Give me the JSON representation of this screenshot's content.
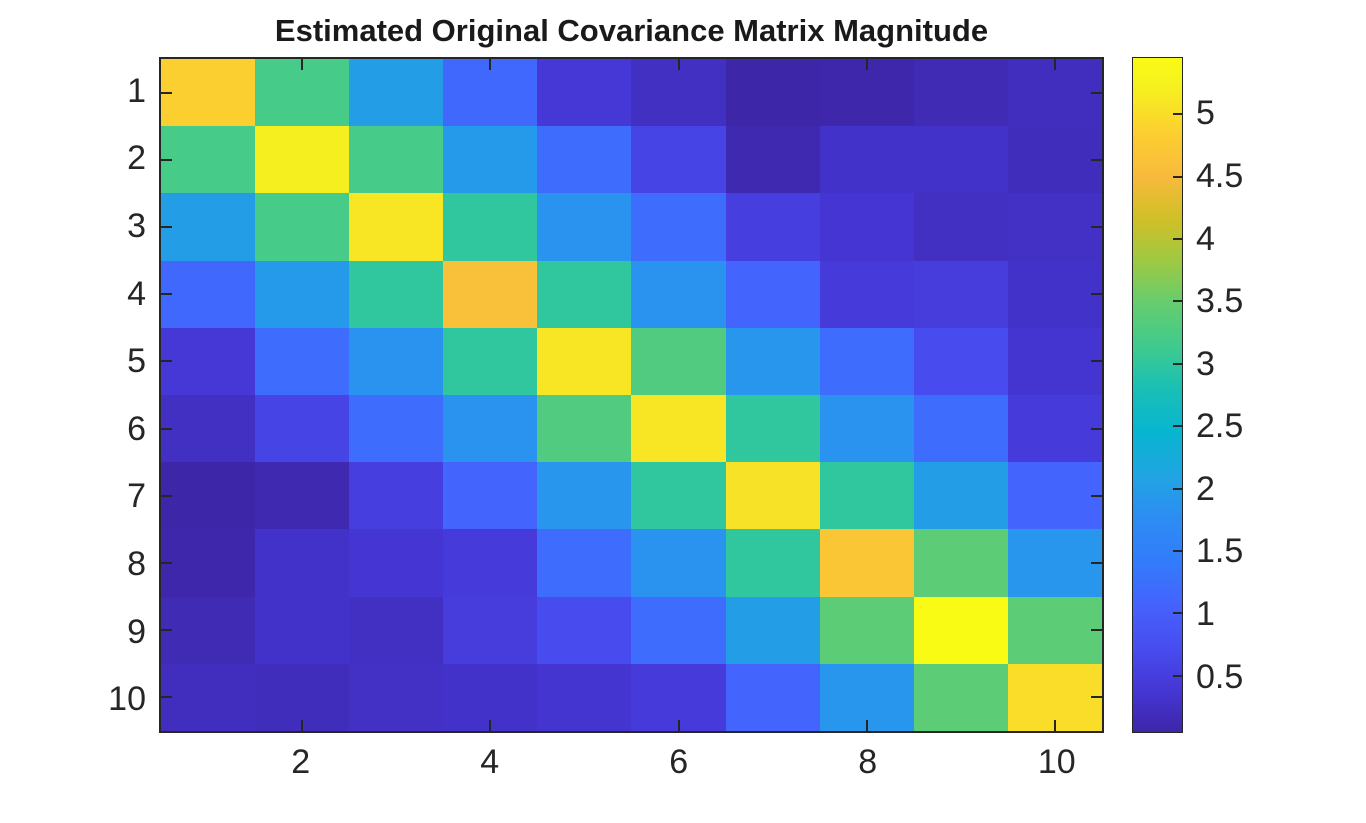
{
  "figure": {
    "background": "#ffffff"
  },
  "style": {
    "axis_color": "#262626",
    "title_color": "#1a1a1a"
  },
  "chart_data": {
    "type": "heatmap",
    "title": "Estimated Original Covariance Matrix Magnitude",
    "xlabel": "",
    "ylabel": "",
    "n_rows": 10,
    "n_cols": 10,
    "x_tick_positions": [
      2,
      4,
      6,
      8,
      10
    ],
    "x_tick_labels": [
      "2",
      "4",
      "6",
      "8",
      "10"
    ],
    "y_tick_positions": [
      1,
      2,
      3,
      4,
      5,
      6,
      7,
      8,
      9,
      10
    ],
    "y_tick_labels": [
      "1",
      "2",
      "3",
      "4",
      "5",
      "6",
      "7",
      "8",
      "9",
      "10"
    ],
    "clim": [
      0.05,
      5.45
    ],
    "grid": false,
    "colormap_name": "parula",
    "colormap_stops": [
      [
        0.0,
        "#3e26a8"
      ],
      [
        0.063,
        "#4537d5"
      ],
      [
        0.127,
        "#484df0"
      ],
      [
        0.19,
        "#4563fd"
      ],
      [
        0.254,
        "#327cfc"
      ],
      [
        0.317,
        "#2d8cf3"
      ],
      [
        0.381,
        "#20a5e2"
      ],
      [
        0.444,
        "#08b5d0"
      ],
      [
        0.508,
        "#19bfb6"
      ],
      [
        0.571,
        "#3fca8e"
      ],
      [
        0.635,
        "#64cd6f"
      ],
      [
        0.698,
        "#9dc943"
      ],
      [
        0.762,
        "#d1bf27"
      ],
      [
        0.825,
        "#f8ba3d"
      ],
      [
        0.889,
        "#fccf30"
      ],
      [
        0.952,
        "#f6ef20"
      ],
      [
        1.0,
        "#f9fb15"
      ]
    ],
    "colorbar": {
      "position": "right",
      "tick_values": [
        0.5,
        1,
        1.5,
        2,
        2.5,
        3,
        3.5,
        4,
        4.5,
        5
      ],
      "tick_labels": [
        "0.5",
        "1",
        "1.5",
        "2",
        "2.5",
        "3",
        "3.5",
        "4",
        "4.5",
        "5"
      ]
    },
    "values": [
      [
        4.85,
        3.2,
        2.0,
        1.15,
        0.4,
        0.25,
        0.06,
        0.08,
        0.15,
        0.22
      ],
      [
        3.2,
        5.2,
        3.2,
        1.95,
        1.2,
        0.6,
        0.12,
        0.3,
        0.3,
        0.2
      ],
      [
        2.0,
        3.2,
        5.1,
        3.0,
        1.85,
        1.2,
        0.5,
        0.38,
        0.25,
        0.28
      ],
      [
        1.15,
        1.95,
        3.0,
        4.6,
        3.0,
        1.85,
        1.1,
        0.45,
        0.48,
        0.3
      ],
      [
        0.4,
        1.2,
        1.85,
        3.0,
        5.1,
        3.3,
        1.9,
        1.2,
        0.72,
        0.35
      ],
      [
        0.25,
        0.6,
        1.2,
        1.85,
        3.3,
        5.1,
        3.0,
        1.85,
        1.2,
        0.45
      ],
      [
        0.06,
        0.12,
        0.5,
        1.1,
        1.9,
        3.0,
        5.05,
        3.0,
        2.0,
        1.1
      ],
      [
        0.08,
        0.3,
        0.38,
        0.45,
        1.2,
        1.85,
        3.0,
        4.7,
        3.4,
        1.9
      ],
      [
        0.15,
        0.3,
        0.25,
        0.48,
        0.72,
        1.2,
        2.0,
        3.4,
        5.45,
        3.4
      ],
      [
        0.22,
        0.2,
        0.28,
        0.3,
        0.35,
        0.45,
        1.1,
        1.9,
        3.4,
        5.0
      ]
    ]
  }
}
